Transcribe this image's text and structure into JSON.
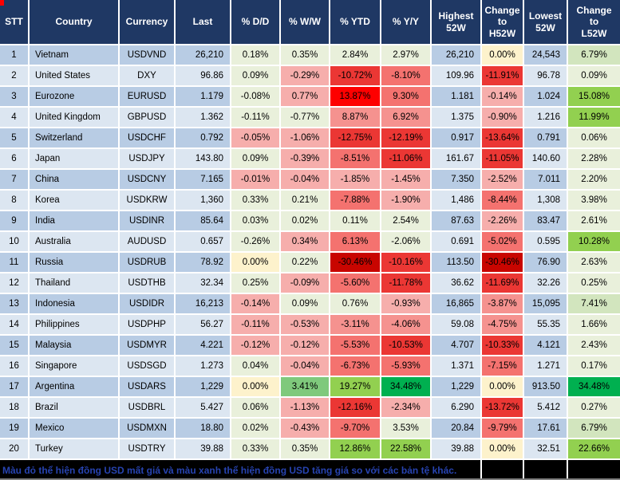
{
  "title": "USD exchange-rate heatmap table",
  "palette": {
    "header_bg": "#1F3864",
    "row_odd": "#B8CCE4",
    "row_even": "#DCE6F1",
    "grid": "#FFFFFF",
    "y": "#FDF2CC",
    "g0": "#E9F0DB",
    "g1": "#D2E5BE",
    "g2": "#7FC97C",
    "g3": "#92D050",
    "g4": "#00B050",
    "r0": "#F6AEAC",
    "r1": "#F5928F",
    "r2": "#F4726F",
    "r3": "#EB3734",
    "r4": "#FE0000",
    "r5": "#C80500",
    "note_bg": "#000000",
    "note_text": "#2743B0",
    "marker_red": "#FF0000"
  },
  "footer": {
    "note": "Màu đỏ thể hiện đồng USD mất giá và màu xanh thể hiện đồng USD tăng giá so với các bản tệ khác."
  },
  "chart_data": {
    "type": "table",
    "columns": [
      "STT",
      "Country",
      "Currency",
      "Last",
      "% D/D",
      "% W/W",
      "% YTD",
      "% Y/Y",
      "Highest\n52W",
      "Change\nto\nH52W",
      "Lowest\n52W",
      "Change\nto\nL52W"
    ],
    "column_keys": [
      "stt",
      "country",
      "currency",
      "last",
      "dd",
      "ww",
      "ytd",
      "yy",
      "high52",
      "chg-h52",
      "low52",
      "chg-l52"
    ],
    "rows": [
      {
        "c": [
          "1",
          "Vietnam",
          "USDVND",
          "26,210",
          "0.18%",
          "0.35%",
          "2.84%",
          "2.97%",
          "26,210",
          "0.00%",
          "24,543",
          "6.79%"
        ],
        "bg": [
          null,
          null,
          null,
          null,
          "g0",
          "g0",
          "g0",
          "g0",
          null,
          "y",
          null,
          "g1"
        ]
      },
      {
        "c": [
          "2",
          "United States",
          "DXY",
          "96.86",
          "0.09%",
          "-0.29%",
          "-10.72%",
          "-8.10%",
          "109.96",
          "-11.91%",
          "96.78",
          "0.09%"
        ],
        "bg": [
          null,
          null,
          null,
          null,
          "g0",
          "r0",
          "r3",
          "r2",
          null,
          "r3",
          null,
          "g0"
        ]
      },
      {
        "c": [
          "3",
          "Eurozone",
          "EURUSD",
          "1.179",
          "-0.08%",
          "0.77%",
          "13.87%",
          "9.30%",
          "1.181",
          "-0.14%",
          "1.024",
          "15.08%"
        ],
        "bg": [
          null,
          null,
          null,
          null,
          "g0",
          "r0",
          "r4",
          "r2",
          null,
          "r0",
          null,
          "g3"
        ]
      },
      {
        "c": [
          "4",
          "United Kingdom",
          "GBPUSD",
          "1.362",
          "-0.11%",
          "-0.77%",
          "8.87%",
          "6.92%",
          "1.375",
          "-0.90%",
          "1.216",
          "11.99%"
        ],
        "bg": [
          null,
          null,
          null,
          null,
          "g0",
          "g0",
          "r1",
          "r1",
          null,
          "r0",
          null,
          "g3"
        ]
      },
      {
        "c": [
          "5",
          "Switzerland",
          "USDCHF",
          "0.792",
          "-0.05%",
          "-1.06%",
          "-12.75%",
          "-12.19%",
          "0.917",
          "-13.64%",
          "0.791",
          "0.06%"
        ],
        "bg": [
          null,
          null,
          null,
          null,
          "r0",
          "r0",
          "r3",
          "r3",
          null,
          "r3",
          null,
          "g0"
        ]
      },
      {
        "c": [
          "6",
          "Japan",
          "USDJPY",
          "143.80",
          "0.09%",
          "-0.39%",
          "-8.51%",
          "-11.06%",
          "161.67",
          "-11.05%",
          "140.60",
          "2.28%"
        ],
        "bg": [
          null,
          null,
          null,
          null,
          "g0",
          "r0",
          "r2",
          "r3",
          null,
          "r3",
          null,
          "g0"
        ]
      },
      {
        "c": [
          "7",
          "China",
          "USDCNY",
          "7.165",
          "-0.01%",
          "-0.04%",
          "-1.85%",
          "-1.45%",
          "7.350",
          "-2.52%",
          "7.011",
          "2.20%"
        ],
        "bg": [
          null,
          null,
          null,
          null,
          "r0",
          "r0",
          "r0",
          "r0",
          null,
          "r0",
          null,
          "g0"
        ]
      },
      {
        "c": [
          "8",
          "Korea",
          "USDKRW",
          "1,360",
          "0.33%",
          "0.21%",
          "-7.88%",
          "-1.90%",
          "1,486",
          "-8.44%",
          "1,308",
          "3.98%"
        ],
        "bg": [
          null,
          null,
          null,
          null,
          "g0",
          "g0",
          "r2",
          "r0",
          null,
          "r2",
          null,
          "g0"
        ]
      },
      {
        "c": [
          "9",
          "India",
          "USDINR",
          "85.64",
          "0.03%",
          "0.02%",
          "0.11%",
          "2.54%",
          "87.63",
          "-2.26%",
          "83.47",
          "2.61%"
        ],
        "bg": [
          null,
          null,
          null,
          null,
          "g0",
          "g0",
          "g0",
          "g0",
          null,
          "r0",
          null,
          "g0"
        ]
      },
      {
        "c": [
          "10",
          "Australia",
          "AUDUSD",
          "0.657",
          "-0.26%",
          "0.34%",
          "6.13%",
          "-2.06%",
          "0.691",
          "-5.02%",
          "0.595",
          "10.28%"
        ],
        "bg": [
          null,
          null,
          null,
          null,
          "g0",
          "r0",
          "r2",
          "g0",
          null,
          "r2",
          null,
          "g3"
        ]
      },
      {
        "c": [
          "11",
          "Russia",
          "USDRUB",
          "78.92",
          "0.00%",
          "0.22%",
          "-30.46%",
          "-10.16%",
          "113.50",
          "-30.46%",
          "76.90",
          "2.63%"
        ],
        "bg": [
          null,
          null,
          null,
          null,
          "y",
          "g0",
          "r5",
          "r3",
          null,
          "r5",
          null,
          "g0"
        ]
      },
      {
        "c": [
          "12",
          "Thailand",
          "USDTHB",
          "32.34",
          "0.25%",
          "-0.09%",
          "-5.60%",
          "-11.78%",
          "36.62",
          "-11.69%",
          "32.26",
          "0.25%"
        ],
        "bg": [
          null,
          null,
          null,
          null,
          "g0",
          "r0",
          "r2",
          "r3",
          null,
          "r3",
          null,
          "g0"
        ]
      },
      {
        "c": [
          "13",
          "Indonesia",
          "USDIDR",
          "16,213",
          "-0.14%",
          "0.09%",
          "0.76%",
          "-0.93%",
          "16,865",
          "-3.87%",
          "15,095",
          "7.41%"
        ],
        "bg": [
          null,
          null,
          null,
          null,
          "r0",
          "g0",
          "g0",
          "r0",
          null,
          "r1",
          null,
          "g1"
        ]
      },
      {
        "c": [
          "14",
          "Philippines",
          "USDPHP",
          "56.27",
          "-0.11%",
          "-0.53%",
          "-3.11%",
          "-4.06%",
          "59.08",
          "-4.75%",
          "55.35",
          "1.66%"
        ],
        "bg": [
          null,
          null,
          null,
          null,
          "r0",
          "r0",
          "r1",
          "r1",
          null,
          "r1",
          null,
          "g0"
        ]
      },
      {
        "c": [
          "15",
          "Malaysia",
          "USDMYR",
          "4.221",
          "-0.12%",
          "-0.12%",
          "-5.53%",
          "-10.53%",
          "4.707",
          "-10.33%",
          "4.121",
          "2.43%"
        ],
        "bg": [
          null,
          null,
          null,
          null,
          "r0",
          "r0",
          "r2",
          "r3",
          null,
          "r3",
          null,
          "g0"
        ]
      },
      {
        "c": [
          "16",
          "Singapore",
          "USDSGD",
          "1.273",
          "0.04%",
          "-0.04%",
          "-6.73%",
          "-5.93%",
          "1.371",
          "-7.15%",
          "1.271",
          "0.17%"
        ],
        "bg": [
          null,
          null,
          null,
          null,
          "g0",
          "r0",
          "r2",
          "r2",
          null,
          "r2",
          null,
          "g0"
        ]
      },
      {
        "c": [
          "17",
          "Argentina",
          "USDARS",
          "1,229",
          "0.00%",
          "3.41%",
          "19.27%",
          "34.48%",
          "1,229",
          "0.00%",
          "913.50",
          "34.48%"
        ],
        "bg": [
          null,
          null,
          null,
          null,
          "y",
          "g2",
          "g3",
          "g4",
          null,
          "y",
          null,
          "g4"
        ]
      },
      {
        "c": [
          "18",
          "Brazil",
          "USDBRL",
          "5.427",
          "0.06%",
          "-1.13%",
          "-12.16%",
          "-2.34%",
          "6.290",
          "-13.72%",
          "5.412",
          "0.27%"
        ],
        "bg": [
          null,
          null,
          null,
          null,
          "g0",
          "r0",
          "r3",
          "r0",
          null,
          "r3",
          null,
          "g0"
        ]
      },
      {
        "c": [
          "19",
          "Mexico",
          "USDMXN",
          "18.80",
          "0.02%",
          "-0.43%",
          "-9.70%",
          "3.53%",
          "20.84",
          "-9.79%",
          "17.61",
          "6.79%"
        ],
        "bg": [
          null,
          null,
          null,
          null,
          "g0",
          "r0",
          "r2",
          "g0",
          null,
          "r2",
          null,
          "g1"
        ]
      },
      {
        "c": [
          "20",
          "Turkey",
          "USDTRY",
          "39.88",
          "0.33%",
          "0.35%",
          "12.86%",
          "22.58%",
          "39.88",
          "0.00%",
          "32.51",
          "22.66%"
        ],
        "bg": [
          null,
          null,
          null,
          null,
          "g0",
          "g0",
          "g3",
          "g3",
          null,
          "y",
          null,
          "g3"
        ]
      }
    ]
  }
}
